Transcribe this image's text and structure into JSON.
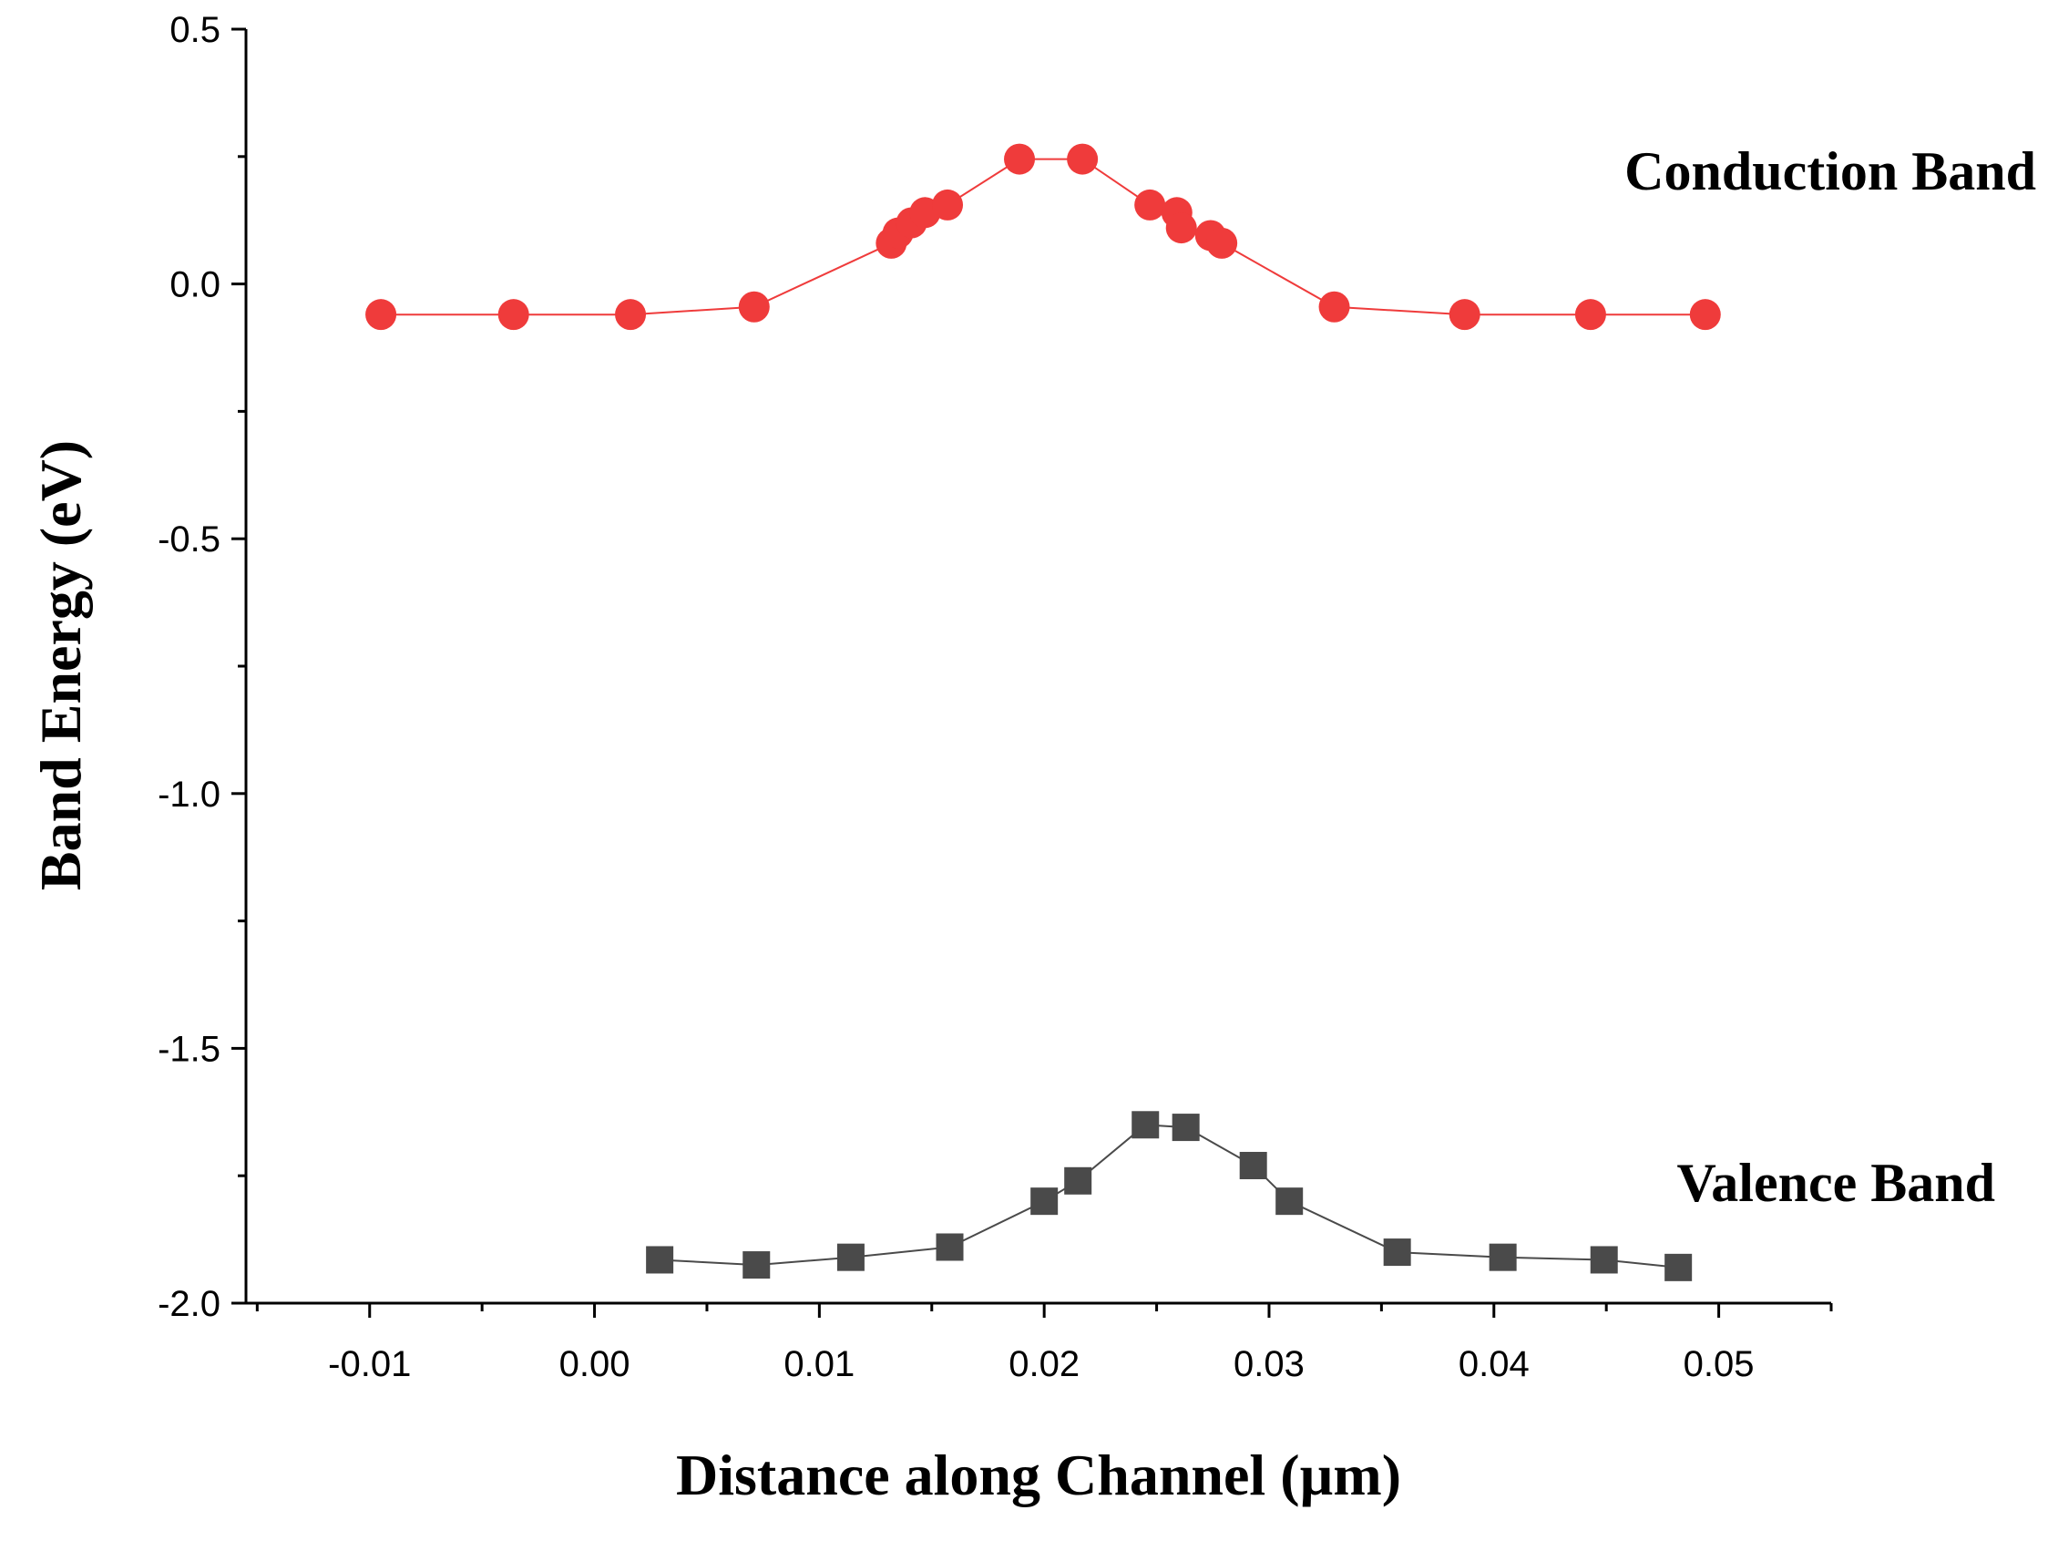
{
  "chart_data": {
    "type": "line",
    "xlabel": "Distance along Channel (µm)",
    "ylabel": "Band Energy (eV)",
    "xlim": [
      -0.0155,
      0.055
    ],
    "ylim": [
      -2.0,
      0.5
    ],
    "x_ticks": [
      -0.01,
      0.0,
      0.01,
      0.02,
      0.03,
      0.04,
      0.05
    ],
    "x_tick_labels": [
      "-0.01",
      "0.00",
      "0.01",
      "0.02",
      "0.03",
      "0.04",
      "0.05"
    ],
    "y_ticks": [
      0.5,
      0.0,
      -0.5,
      -1.0,
      -1.5,
      -2.0
    ],
    "y_tick_labels": [
      "0.5",
      "0.0",
      "-0.5",
      "-1.0",
      "-1.5",
      "-2.0"
    ],
    "annotations": [
      {
        "text": "Conduction Band",
        "series": "Conduction Band"
      },
      {
        "text": "Valence Band",
        "series": "Valence Band"
      }
    ],
    "series": [
      {
        "name": "Conduction Band",
        "color": "#ef3b3b",
        "marker": "circle",
        "x": [
          -0.0095,
          -0.0036,
          0.0016,
          0.0071,
          0.0132,
          0.0135,
          0.0141,
          0.0147,
          0.0157,
          0.0189,
          0.0217,
          0.0247,
          0.0259,
          0.0261,
          0.0274,
          0.0279,
          0.0329,
          0.0387,
          0.0443,
          0.0494
        ],
        "y": [
          -0.06,
          -0.06,
          -0.06,
          -0.045,
          0.08,
          0.1,
          0.12,
          0.14,
          0.155,
          0.245,
          0.245,
          0.155,
          0.14,
          0.11,
          0.095,
          0.08,
          -0.045,
          -0.06,
          -0.06,
          -0.06
        ]
      },
      {
        "name": "Valence Band",
        "color": "#4a4a4a",
        "marker": "square",
        "x": [
          0.0029,
          0.0072,
          0.0114,
          0.0158,
          0.02,
          0.0215,
          0.0245,
          0.0263,
          0.0293,
          0.0309,
          0.0357,
          0.0404,
          0.0449,
          0.0482
        ],
        "y": [
          -1.915,
          -1.925,
          -1.91,
          -1.89,
          -1.8,
          -1.76,
          -1.65,
          -1.655,
          -1.73,
          -1.8,
          -1.9,
          -1.91,
          -1.915,
          -1.93
        ]
      }
    ]
  }
}
